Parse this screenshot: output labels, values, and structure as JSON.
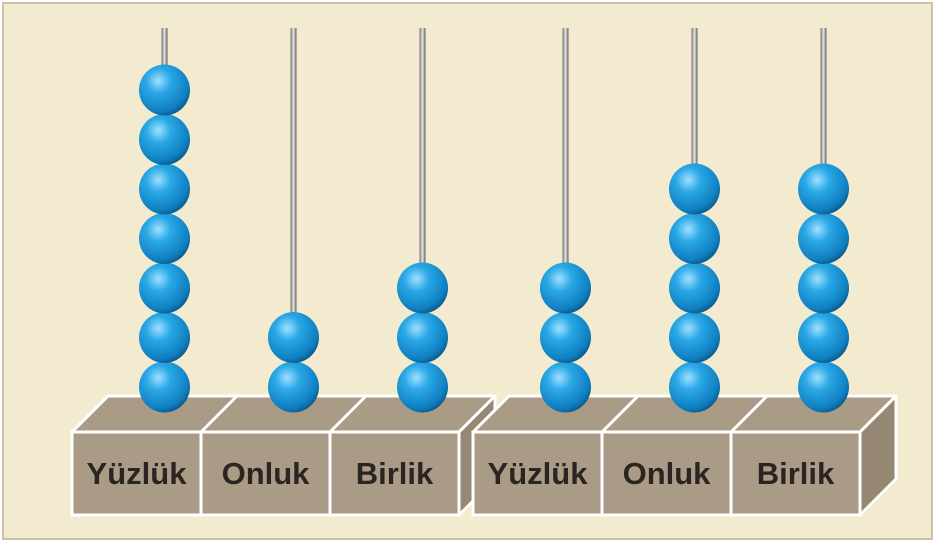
{
  "abacuses": [
    {
      "rods": [
        {
          "label": "Yüzlük",
          "beads": 7
        },
        {
          "label": "Onluk",
          "beads": 2
        },
        {
          "label": "Birlik",
          "beads": 3
        }
      ]
    },
    {
      "rods": [
        {
          "label": "Yüzlük",
          "beads": 3
        },
        {
          "label": "Onluk",
          "beads": 5
        },
        {
          "label": "Birlik",
          "beads": 5
        }
      ]
    }
  ]
}
